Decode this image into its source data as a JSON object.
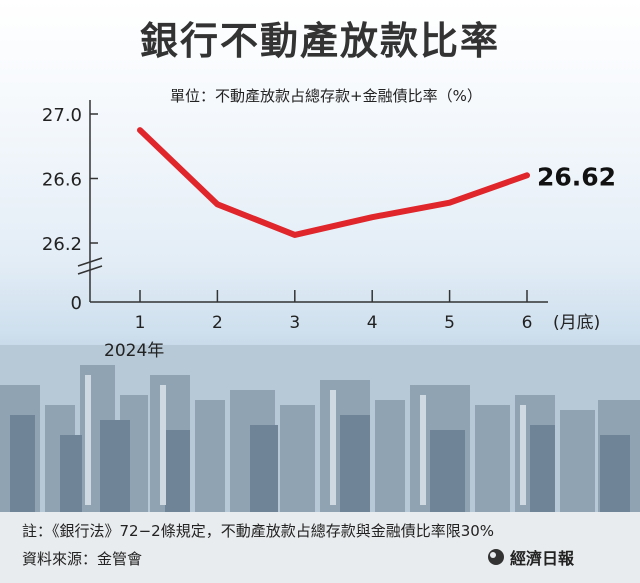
{
  "header": {
    "title": "銀行不動產放款比率",
    "subtitle": "單位：不動產放款占總存款+金融債比率（%）"
  },
  "chart_data": {
    "type": "line",
    "x": [
      1,
      2,
      3,
      4,
      5,
      6
    ],
    "series": [
      {
        "values": [
          26.9,
          26.44,
          26.25,
          26.36,
          26.45,
          26.62
        ],
        "color": "#e0252b"
      }
    ],
    "ytick_labels": [
      "27.0",
      "26.6",
      "26.2",
      "0"
    ],
    "xtick_labels": [
      "1",
      "2",
      "3",
      "4",
      "5",
      "6"
    ],
    "xunit": "(月底)",
    "year_label": "2024年",
    "last_label": "26.62",
    "ylim": [
      26.2,
      27.0
    ],
    "axis_break": true,
    "grid": false
  },
  "footer": {
    "note": "註：《銀行法》72−2條規定，不動產放款占總存款與金融債比率限30%",
    "source": "資料來源：金管會",
    "brand": "經濟日報"
  }
}
